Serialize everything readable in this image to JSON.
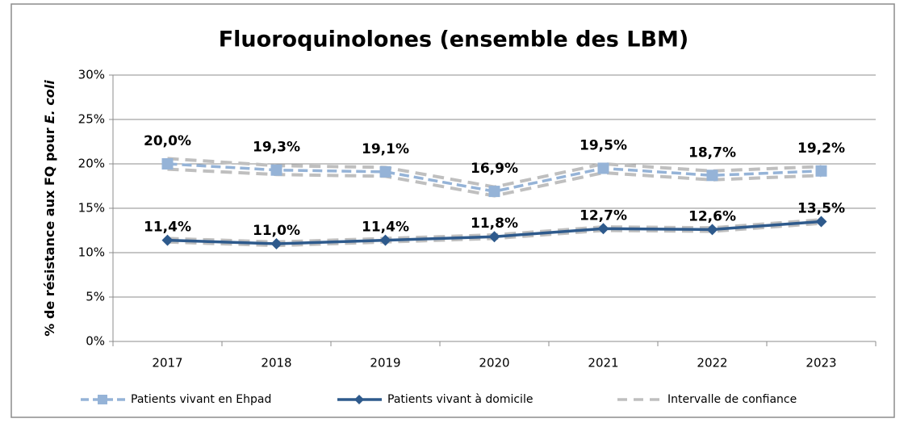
{
  "chart_data": {
    "type": "line",
    "title": "Fluoroquinolones (ensemble des LBM)",
    "y_label": [
      "% de résistance aux FQ pour",
      "E. coli"
    ],
    "categories": [
      "2017",
      "2018",
      "2019",
      "2020",
      "2021",
      "2022",
      "2023"
    ],
    "ylim": [
      0,
      30
    ],
    "yticks": [
      {
        "value": 0,
        "label": "0%"
      },
      {
        "value": 5,
        "label": "5%"
      },
      {
        "value": 10,
        "label": "10%"
      },
      {
        "value": 15,
        "label": "15%"
      },
      {
        "value": 20,
        "label": "20%"
      },
      {
        "value": 25,
        "label": "25%"
      },
      {
        "value": 30,
        "label": "30%"
      }
    ],
    "grid": true,
    "legend": "bottom",
    "series": [
      {
        "name": "Patients vivant en Ehpad",
        "color": "#95b3d7",
        "marker": "square",
        "dashed": true,
        "values": [
          20.0,
          19.3,
          19.1,
          16.9,
          19.5,
          18.7,
          19.2
        ],
        "value_labels": [
          "20,0%",
          "19,3%",
          "19,1%",
          "16,9%",
          "19,5%",
          "18,7%",
          "19,2%"
        ]
      },
      {
        "name": "Patients vivant à domicile",
        "color": "#2e5a8c",
        "marker": "diamond",
        "dashed": false,
        "values": [
          11.4,
          11.0,
          11.4,
          11.8,
          12.7,
          12.6,
          13.5
        ],
        "value_labels": [
          "11,4%",
          "11,0%",
          "11,4%",
          "11,8%",
          "12,7%",
          "12,6%",
          "13,5%"
        ]
      }
    ],
    "confidence_interval": {
      "name": "Intervalle de confiance",
      "color": "#bfbfbf",
      "bounds": [
        [
          19.4,
          18.8,
          18.6,
          16.4,
          19.0,
          18.2,
          18.7
        ],
        [
          20.6,
          19.8,
          19.6,
          17.4,
          20.0,
          19.2,
          19.7
        ],
        [
          11.2,
          10.8,
          11.2,
          11.6,
          12.5,
          12.4,
          13.3
        ],
        [
          11.6,
          11.2,
          11.6,
          12.0,
          12.9,
          12.8,
          13.7
        ]
      ]
    }
  }
}
